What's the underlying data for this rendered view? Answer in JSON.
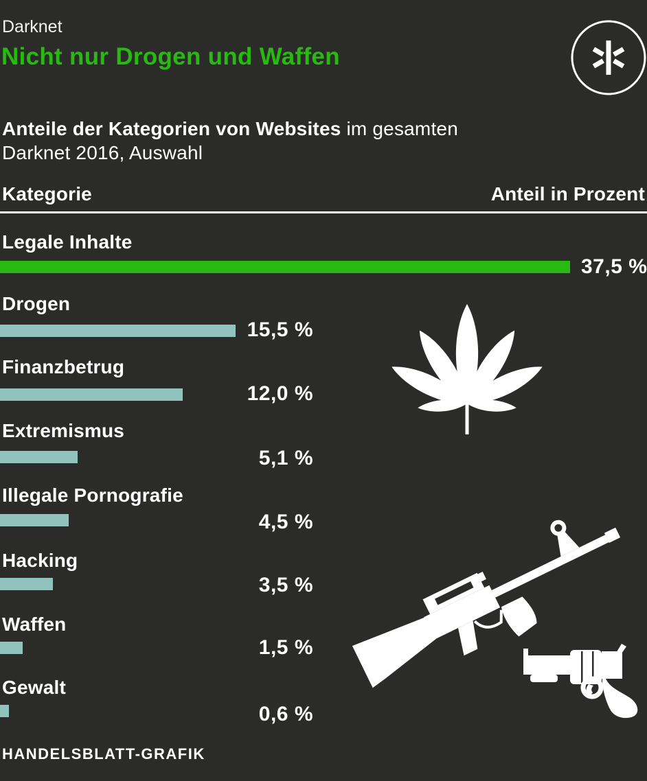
{
  "header": {
    "kicker": "Darknet",
    "title": "Nicht nur Drogen und Waffen"
  },
  "subtitle": {
    "bold": "Anteile der Kategorien von Websites",
    "rest_line1": " im gesamten",
    "line2": "Darknet 2016, Auswahl"
  },
  "table_header": {
    "category": "Kategorie",
    "share": "Anteil in Prozent"
  },
  "chart_data": {
    "type": "bar",
    "orientation": "horizontal",
    "title": "Nicht nur Drogen und Waffen",
    "subtitle": "Anteile der Kategorien von Websites im gesamten Darknet 2016, Auswahl",
    "categories": [
      "Legale Inhalte",
      "Drogen",
      "Finanzbetrug",
      "Extremismus",
      "Illegale Pornografie",
      "Hacking",
      "Waffen",
      "Gewalt"
    ],
    "values": [
      37.5,
      15.5,
      12.0,
      5.1,
      4.5,
      3.5,
      1.5,
      0.6
    ],
    "value_labels": [
      "37,5 %",
      "15,5 %",
      "12,0 %",
      "5,1 %",
      "4,5 %",
      "3,5 %",
      "1,5 %",
      "0,6 %"
    ],
    "unit": "percent",
    "xlim": [
      0,
      37.5
    ],
    "grid": false,
    "legend": "none",
    "highlight_index": 0,
    "colors": {
      "highlight_bar": "#28ba10",
      "bar": "#8fc3bc",
      "background": "#2b2b2a",
      "text": "#ffffff"
    }
  },
  "icons": {
    "logo": "asterisk-logo",
    "drugs": "cannabis-leaf",
    "weapons_rifle": "rifle",
    "weapons_revolver": "revolver"
  },
  "footer": {
    "credit": "HANDELSBLATT-GRAFIK"
  }
}
